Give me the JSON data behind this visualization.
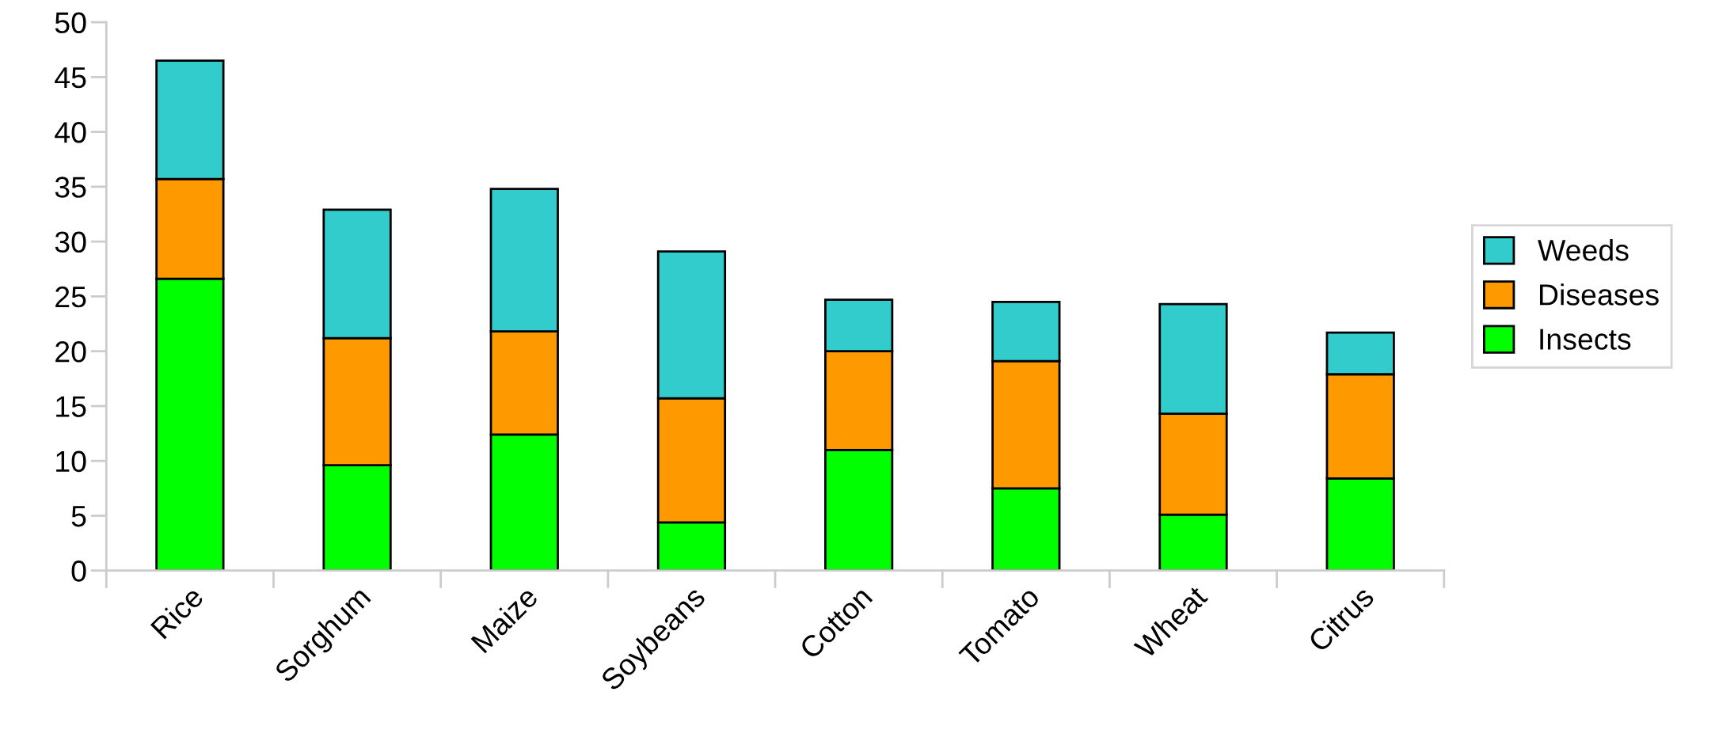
{
  "chart_data": {
    "type": "bar",
    "stacked": true,
    "categories": [
      "Rice",
      "Sorghum",
      "Maize",
      "Soybeans",
      "Cotton",
      "Tomato",
      "Wheat",
      "Citrus"
    ],
    "series": [
      {
        "name": "Insects",
        "color": "#00ff00",
        "values": [
          26.6,
          9.6,
          12.4,
          4.4,
          11.0,
          7.5,
          5.1,
          8.4
        ]
      },
      {
        "name": "Diseases",
        "color": "#ff9900",
        "values": [
          9.1,
          11.6,
          9.4,
          11.3,
          9.0,
          11.6,
          9.2,
          9.5
        ]
      },
      {
        "name": "Weeds",
        "color": "#33cccc",
        "values": [
          10.8,
          11.7,
          13.0,
          13.4,
          4.7,
          5.4,
          10.0,
          3.8
        ]
      }
    ],
    "ylim": [
      0,
      50
    ],
    "yticks": [
      0,
      5,
      10,
      15,
      20,
      25,
      30,
      35,
      40,
      45,
      50
    ],
    "grid": false,
    "legend": "right"
  }
}
